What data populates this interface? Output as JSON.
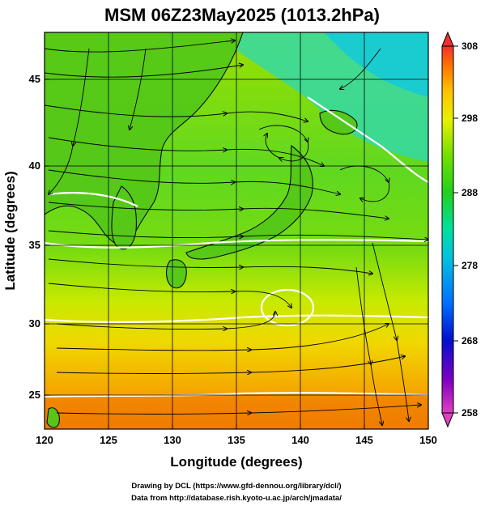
{
  "title": "MSM 06Z23May2025 (1013.2hPa)",
  "x_axis": {
    "label": "Longitude (degrees)",
    "min": 120,
    "max": 150,
    "ticks": [
      "120",
      "125",
      "130",
      "135",
      "140",
      "145",
      "150"
    ]
  },
  "y_axis": {
    "label": "Latitude  (degrees)",
    "min": 22.4,
    "max": 47.6,
    "ticks": [
      "25",
      "30",
      "35",
      "40",
      "45"
    ]
  },
  "colorbar": {
    "min": 258,
    "max": 308,
    "ticks": [
      "258",
      "268",
      "278",
      "288",
      "298",
      "308"
    ],
    "colors": [
      "#e040c0",
      "#8000c0",
      "#0010d0",
      "#0070ff",
      "#00c0e0",
      "#00e0a0",
      "#20d020",
      "#70e000",
      "#e8f000",
      "#ffc000",
      "#ff7000",
      "#f03030"
    ]
  },
  "credits": {
    "line1": "Drawing by DCL (https://www.gfd-dennou.org/library/dcl/)",
    "line2": "Data from http://database.rish.kyoto-u.ac.jp/arch/jmadata/"
  }
}
